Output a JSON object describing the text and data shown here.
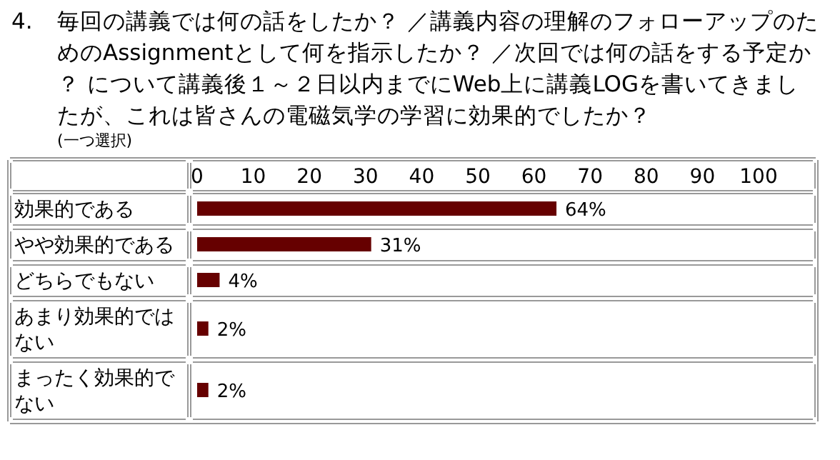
{
  "chart_data": {
    "type": "bar",
    "orientation": "horizontal",
    "title": "4. 毎回の講義では何の話をしたか？ ／講義内容の理解のフォローアップのためのAssignmentとして何を指示したか？ ／次回では何の話をする予定か？ について講義後１～２日以内までにWeb上に講義LOGを書いてきましたが、これは皆さんの電磁気学の学習に効果的でしたか？",
    "subtitle": "(一つ選択)",
    "categories": [
      "効果的である",
      "やや効果的である",
      "どちらでもない",
      "あまり効果的ではない",
      "まったく効果的でない"
    ],
    "values": [
      64,
      31,
      4,
      2,
      2
    ],
    "value_labels": [
      "64%",
      "31%",
      "4%",
      "2%",
      "2%"
    ],
    "color": "#660000",
    "xlim": [
      0,
      100
    ],
    "xticks": [
      0,
      10,
      20,
      30,
      40,
      50,
      60,
      70,
      80,
      90,
      100
    ]
  }
}
